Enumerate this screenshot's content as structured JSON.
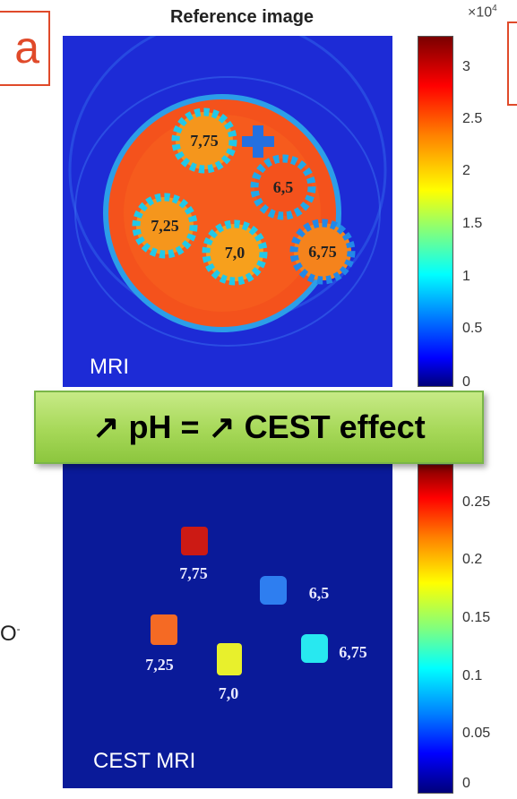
{
  "figure": {
    "top_title": "Reference image",
    "top_map_label": "MRI",
    "bottom_map_label": "CEST MRI",
    "banner_text": "↗ pH = ↗ CEST effect",
    "cropped_left_char": "a",
    "cropped_o_text": "O",
    "cropped_o_sup": "-",
    "top_exponent_base": "×10",
    "top_exponent_power": "4",
    "top_colorbar_ticks": [
      "3",
      "2.5",
      "2",
      "1.5",
      "1",
      "0.5",
      "0"
    ],
    "bottom_colorbar_ticks": [
      "0.25",
      "0.2",
      "0.15",
      "0.1",
      "0.05",
      "0"
    ],
    "top_phantom_labels": [
      "7,75",
      "6,5",
      "7,25",
      "7,0",
      "6,75"
    ],
    "bottom_phantom_labels": [
      "7,75",
      "6,5",
      "7,25",
      "7,0",
      "6,75"
    ]
  },
  "colors": {
    "accent_red": "#e04a2a",
    "banner_green": "#a6d858",
    "map_blue": "#1d2bd6"
  }
}
